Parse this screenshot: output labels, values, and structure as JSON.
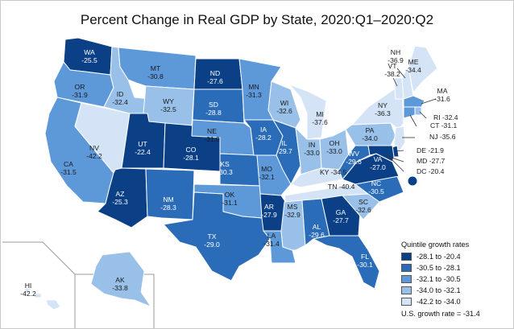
{
  "title": "Percent Change in Real GDP by State, 2020:Q1–2020:Q2",
  "colors": {
    "q1": "#0b3f86",
    "q2": "#2b6cb8",
    "q3": "#5d98d8",
    "q4": "#98c0e9",
    "q5": "#d4e4f6",
    "border": "#ffffff",
    "inset_border": "#9a9a9a"
  },
  "legend": {
    "title": "Quintile growth rates",
    "items": [
      {
        "label": "-28.1 to -20.4",
        "class": "q1"
      },
      {
        "label": "-30.5 to -28.1",
        "class": "q2"
      },
      {
        "label": "-32.1 to -30.5",
        "class": "q3"
      },
      {
        "label": "-34.0 to -32.1",
        "class": "q4"
      },
      {
        "label": "-42.2 to -34.0",
        "class": "q5"
      }
    ],
    "us_rate": "U.S. growth rate = -31.4"
  },
  "states": {
    "WA": {
      "name": "WA",
      "value": "-25.5",
      "class": "q1"
    },
    "OR": {
      "name": "OR",
      "value": "-31.9",
      "class": "q3"
    },
    "CA": {
      "name": "CA",
      "value": "-31.5",
      "class": "q3"
    },
    "NV": {
      "name": "NV",
      "value": "-42.2",
      "class": "q5"
    },
    "ID": {
      "name": "ID",
      "value": "-32.4",
      "class": "q4"
    },
    "MT": {
      "name": "MT",
      "value": "-30.8",
      "class": "q3"
    },
    "WY": {
      "name": "WY",
      "value": "-32.5",
      "class": "q4"
    },
    "UT": {
      "name": "UT",
      "value": "-22.4",
      "class": "q1"
    },
    "CO": {
      "name": "CO",
      "value": "-28.1",
      "class": "q1"
    },
    "AZ": {
      "name": "AZ",
      "value": "-25.3",
      "class": "q1"
    },
    "NM": {
      "name": "NM",
      "value": "-28.3",
      "class": "q2"
    },
    "ND": {
      "name": "ND",
      "value": "-27.6",
      "class": "q1"
    },
    "SD": {
      "name": "SD",
      "value": "-28.8",
      "class": "q2"
    },
    "NE": {
      "name": "NE",
      "value": "-31.0",
      "class": "q3"
    },
    "KS": {
      "name": "KS",
      "value": "-30.3",
      "class": "q2"
    },
    "OK": {
      "name": "OK",
      "value": "-31.1",
      "class": "q3"
    },
    "TX": {
      "name": "TX",
      "value": "-29.0",
      "class": "q2"
    },
    "MN": {
      "name": "MN",
      "value": "-31.3",
      "class": "q3"
    },
    "IA": {
      "name": "IA",
      "value": "-28.2",
      "class": "q2"
    },
    "MO": {
      "name": "MO",
      "value": "-32.1",
      "class": "q3"
    },
    "AR": {
      "name": "AR",
      "value": "-27.9",
      "class": "q1"
    },
    "LA": {
      "name": "LA",
      "value": "-31.4",
      "class": "q3"
    },
    "WI": {
      "name": "WI",
      "value": "-32.6",
      "class": "q4"
    },
    "IL": {
      "name": "IL",
      "value": "-29.7",
      "class": "q2"
    },
    "MI": {
      "name": "MI",
      "value": "-37.6",
      "class": "q5"
    },
    "IN": {
      "name": "IN",
      "value": "-33.0",
      "class": "q4"
    },
    "OH": {
      "name": "OH",
      "value": "-33.0",
      "class": "q4"
    },
    "KY": {
      "name": "KY",
      "value": "-34.5",
      "class": "q5"
    },
    "TN": {
      "name": "TN",
      "value": "-40.4",
      "class": "q5"
    },
    "MS": {
      "name": "MS",
      "value": "-32.9",
      "class": "q4"
    },
    "AL": {
      "name": "AL",
      "value": "-29.6",
      "class": "q2"
    },
    "GA": {
      "name": "GA",
      "value": "-27.7",
      "class": "q1"
    },
    "FL": {
      "name": "FL",
      "value": "-30.1",
      "class": "q2"
    },
    "SC": {
      "name": "SC",
      "value": "-32.6",
      "class": "q4"
    },
    "NC": {
      "name": "NC",
      "value": "-30.5",
      "class": "q2"
    },
    "VA": {
      "name": "VA",
      "value": "-27.0",
      "class": "q1"
    },
    "WV": {
      "name": "WV",
      "value": "-29.6",
      "class": "q2"
    },
    "PA": {
      "name": "PA",
      "value": "-34.0",
      "class": "q4"
    },
    "NY": {
      "name": "NY",
      "value": "-36.3",
      "class": "q5"
    },
    "VT": {
      "name": "VT",
      "value": "-38.2",
      "class": "q5"
    },
    "NH": {
      "name": "NH",
      "value": "-36.9",
      "class": "q5"
    },
    "ME": {
      "name": "ME",
      "value": "-34.4",
      "class": "q5"
    },
    "MA": {
      "name": "MA",
      "value": "-31.6",
      "class": "q3"
    },
    "RI": {
      "name": "RI",
      "value": "-32.4",
      "class": "q4"
    },
    "CT": {
      "name": "CT",
      "value": "-31.1",
      "class": "q3"
    },
    "NJ": {
      "name": "NJ",
      "value": "-35.6",
      "class": "q5"
    },
    "DE": {
      "name": "DE",
      "value": "-21.9",
      "class": "q1"
    },
    "MD": {
      "name": "MD",
      "value": "-27.7",
      "class": "q1"
    },
    "DC": {
      "name": "DC",
      "value": "-20.4",
      "class": "q1"
    },
    "AK": {
      "name": "AK",
      "value": "-33.8",
      "class": "q4"
    },
    "HI": {
      "name": "HI",
      "value": "-42.2",
      "class": "q5"
    }
  }
}
